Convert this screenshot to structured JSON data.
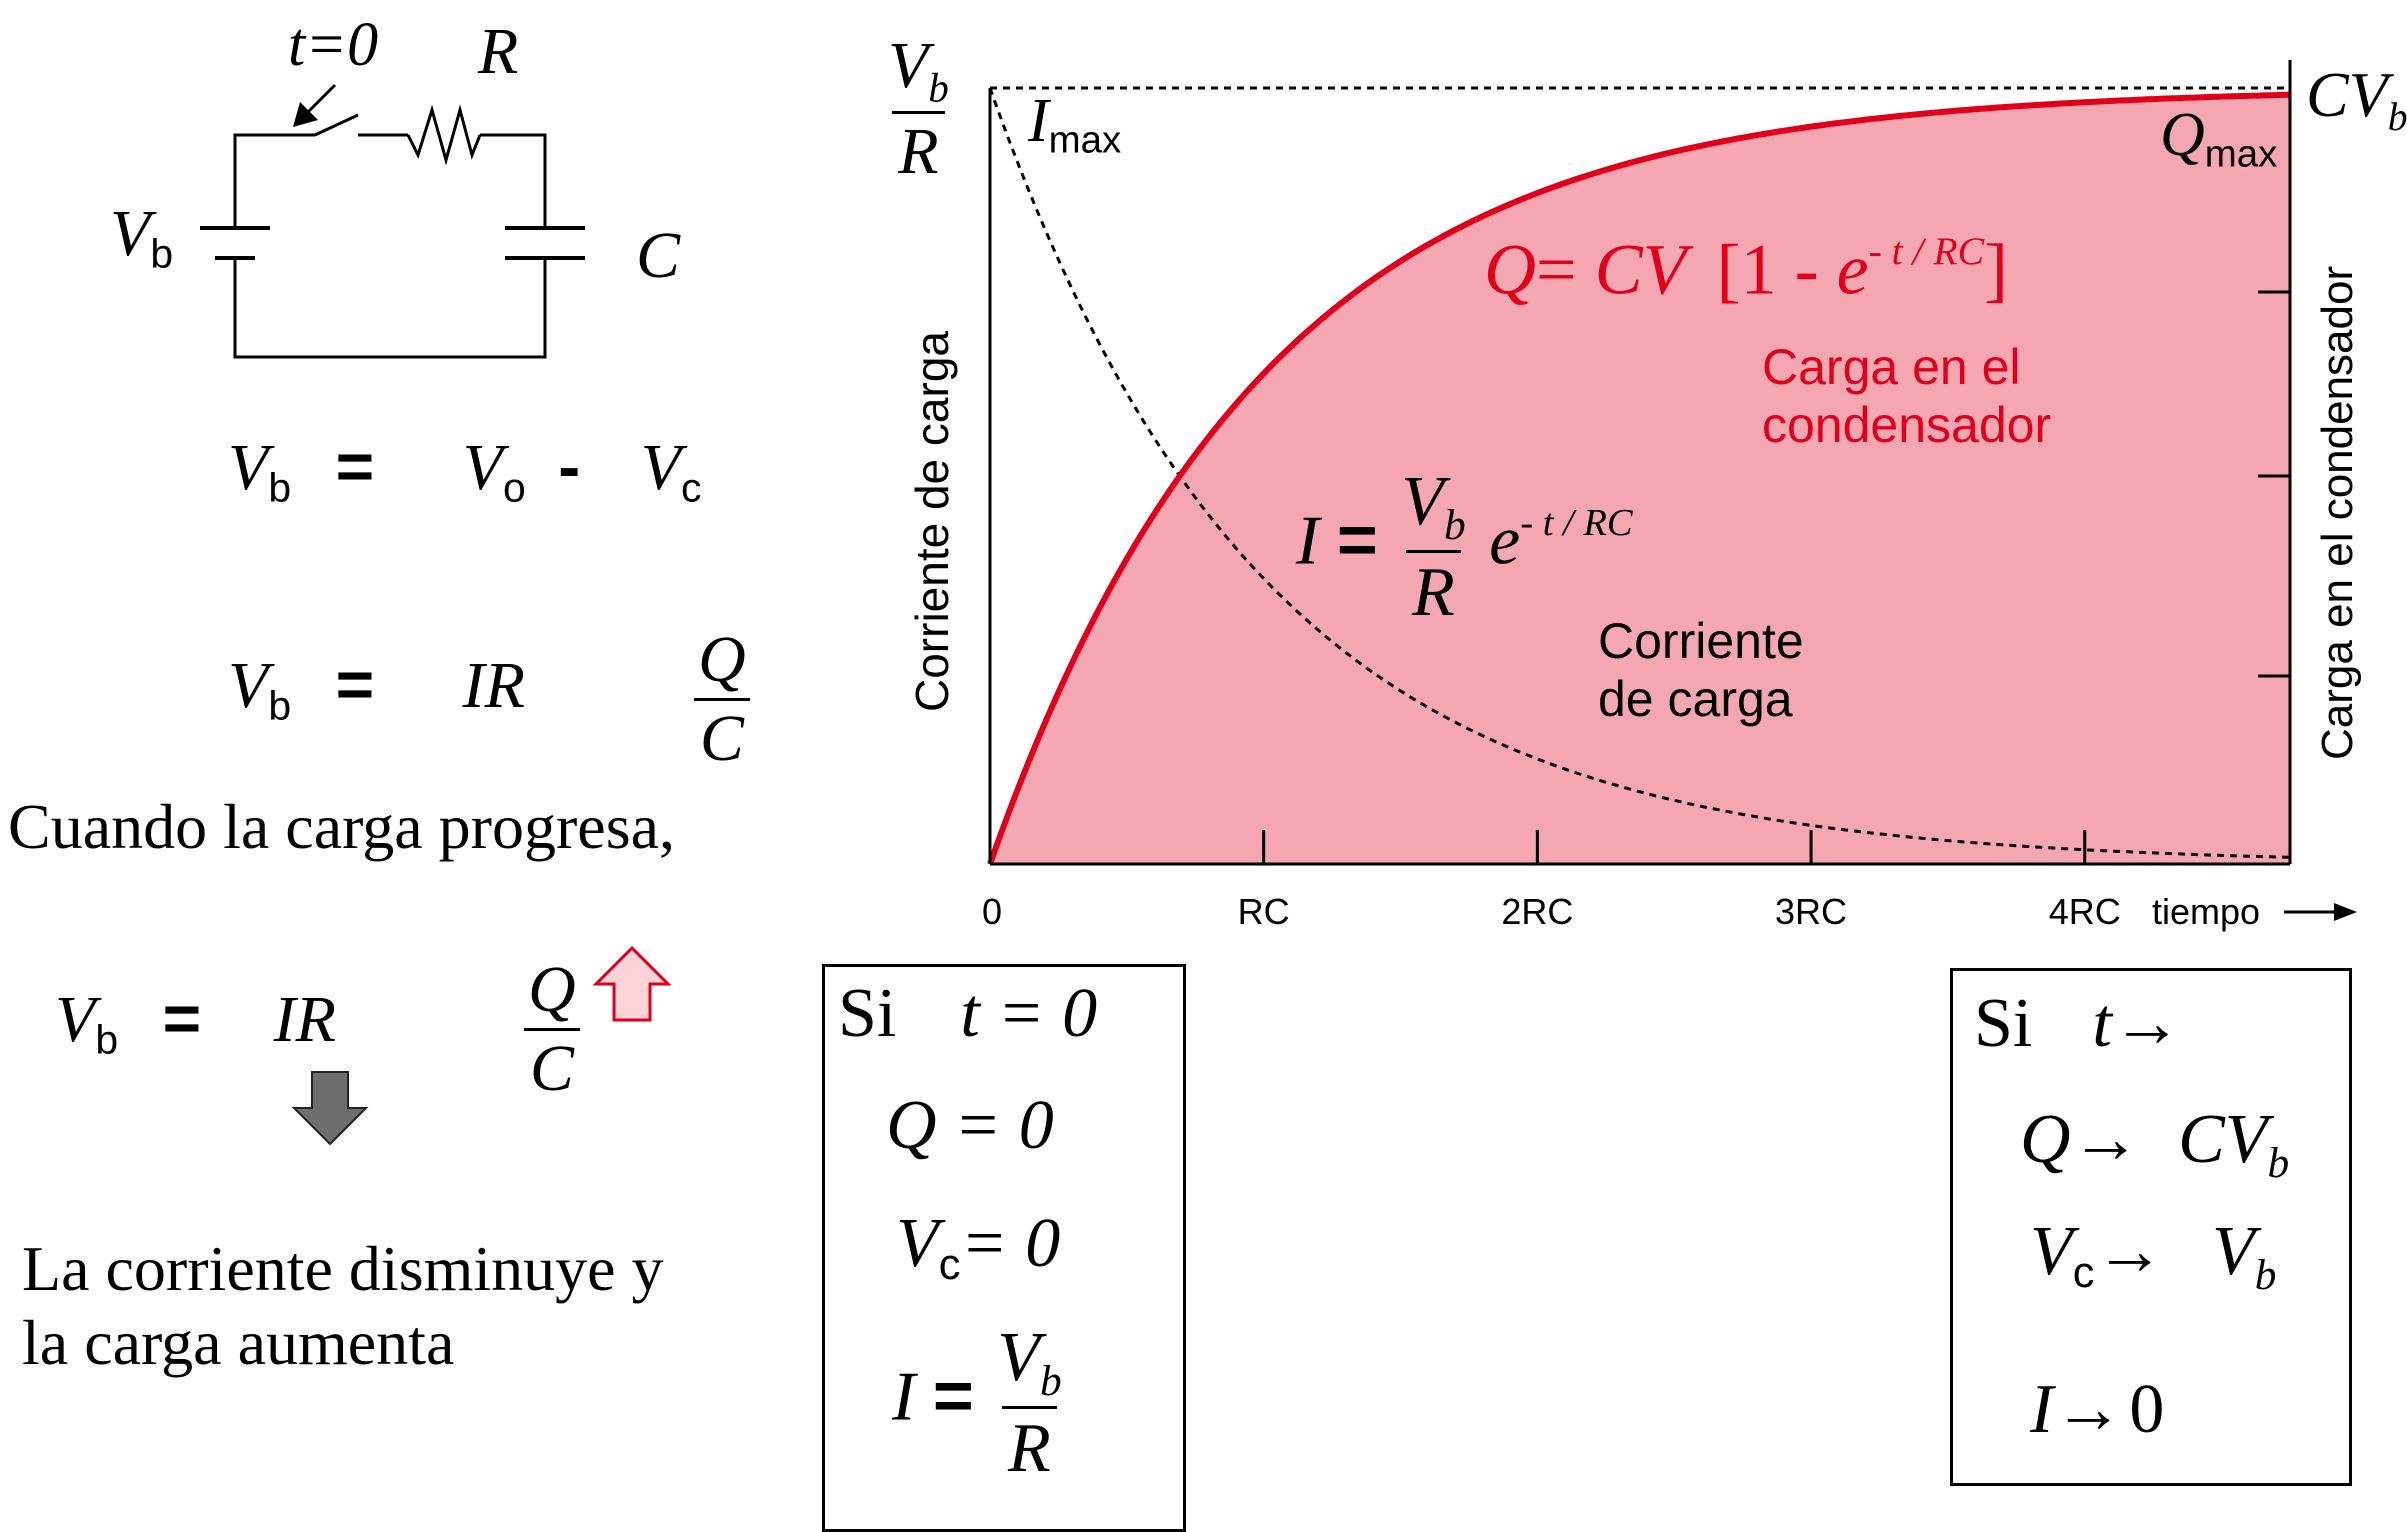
{
  "circuit": {
    "switch_label": "t=0",
    "resistor_label": "R",
    "battery_label": "V",
    "battery_sub": "b",
    "capacitor_label": "C"
  },
  "equations_left": {
    "eq1": {
      "lhs": "V",
      "lhs_sub": "b",
      "eq": "=",
      "t1": "V",
      "t1_sub": "o",
      "minus": "-",
      "t2": "V",
      "t2_sub": "c"
    },
    "eq2": {
      "lhs": "V",
      "lhs_sub": "b",
      "eq": "=",
      "t1": "IR",
      "frac_num": "Q",
      "frac_den": "C"
    },
    "progress_text": "Cuando la carga progresa,",
    "eq3": {
      "lhs": "V",
      "lhs_sub": "b",
      "eq": "=",
      "t1": "IR",
      "frac_num": "Q",
      "frac_den": "C"
    },
    "conclusion_line1": "La corriente disminuye y",
    "conclusion_line2": "la carga aumenta"
  },
  "chart": {
    "left_axis_label": "Corriente de carga",
    "right_axis_label": "Carga en el condensador",
    "left_top": {
      "num": "V",
      "num_sub": "b",
      "den": "R"
    },
    "right_top": {
      "main": "CV",
      "sub": "b"
    },
    "imax": {
      "main": "I",
      "sub": "max"
    },
    "qmax": {
      "main": "Q",
      "sub": "max"
    },
    "x_axis_label": "tiempo",
    "charge_formula": {
      "lhs": "Q",
      "eq": "=",
      "cv": "CV",
      "lb": "[",
      "one": "1 -",
      "e": "e",
      "exp": "- t / RC",
      "rb": "]"
    },
    "charge_caption_1": "Carga en el",
    "charge_caption_2": "condensador",
    "current_formula": {
      "lhs": "I",
      "eq": "=",
      "num": "V",
      "num_sub": "b",
      "den": "R",
      "e": "e",
      "exp": "- t / RC"
    },
    "current_caption_1": "Corriente",
    "current_caption_2": "de carga",
    "colors": {
      "fill": "#f4a7b0",
      "curve": "#e0001c",
      "axis": "#000000"
    }
  },
  "chart_data": {
    "type": "area",
    "x_unit": "RC",
    "x_ticks": [
      "0",
      "RC",
      "2RC",
      "3RC",
      "4RC"
    ],
    "x_tick_values": [
      0,
      1,
      2,
      3,
      4
    ],
    "xlim": [
      0,
      4.75
    ],
    "series": [
      {
        "name": "Q",
        "function": "1 - exp(-t)",
        "max_label": "CV_b"
      },
      {
        "name": "I",
        "function": "exp(-t)",
        "max_label": "V_b/R"
      }
    ],
    "grid": false
  },
  "box_t0": {
    "si": "Si",
    "cond": "t = 0",
    "q_line": "Q = 0",
    "vc_main": "V",
    "vc_sub": "c",
    "vc_rest": "= 0",
    "i_lhs": "I",
    "i_eq": "=",
    "i_num": "V",
    "i_num_sub": "b",
    "i_den": "R"
  },
  "box_tinf": {
    "si": "Si",
    "cond": "t",
    "q_lhs": "Q",
    "q_rhs": "CV",
    "q_rhs_sub": "b",
    "vc_main": "V",
    "vc_sub": "c",
    "vc_rhs": "V",
    "vc_rhs_sub": "b",
    "i_lhs": "I",
    "i_rhs": "0",
    "arrow": "→"
  }
}
